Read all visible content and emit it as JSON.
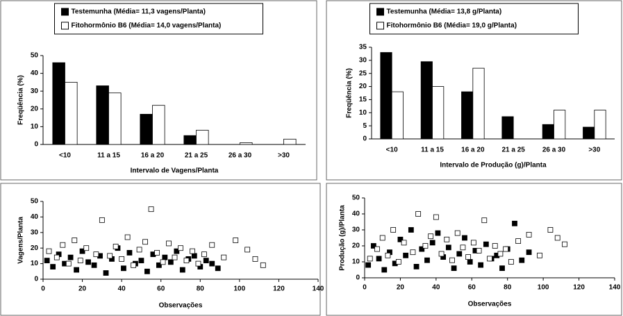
{
  "chart_data": [
    {
      "type": "bar",
      "categories": [
        "<10",
        "11 a 15",
        "16 a 20",
        "21 a 25",
        "26 a 30",
        ">30"
      ],
      "series": [
        {
          "name": "Testemunha (Média= 11,3 vagens/Planta)",
          "color": "#000000",
          "values": [
            46,
            33,
            17,
            5,
            0,
            0
          ]
        },
        {
          "name": "Fitohormônio B6 (Média= 14,0 vagens/Planta)",
          "color": "#ffffff",
          "values": [
            35,
            29,
            22,
            8,
            1,
            3
          ]
        }
      ],
      "x_label": "Intervalo de Vagens/Planta",
      "y_label": "Freqüência (%)",
      "ylim": [
        0,
        50
      ],
      "yticks": [
        0,
        10,
        20,
        30,
        40,
        50
      ]
    },
    {
      "type": "bar",
      "categories": [
        "<10",
        "11 a 15",
        "16 a 20",
        "21 a 25",
        "26 a 30",
        ">30"
      ],
      "series": [
        {
          "name": "Testemunha (Média= 13,8 g/Planta)",
          "color": "#000000",
          "values": [
            33,
            29.5,
            18,
            8.5,
            5.5,
            4.5
          ]
        },
        {
          "name": "Fitohormônio B6 (Média= 19,0 g/Planta)",
          "color": "#ffffff",
          "values": [
            18,
            20,
            27,
            0,
            11,
            11
          ]
        }
      ],
      "x_label": "Intervalo de Produção (g)/Planta",
      "y_label": "Freqüência (%)",
      "ylim": [
        0,
        35
      ],
      "yticks": [
        0,
        5,
        10,
        15,
        20,
        25,
        30,
        35
      ]
    },
    {
      "type": "scatter",
      "series": [
        {
          "color": "#000000",
          "x": [
            2,
            5,
            8,
            11,
            14,
            17,
            20,
            23,
            26,
            29,
            32,
            35,
            38,
            41,
            44,
            47,
            50,
            53,
            56,
            59,
            62,
            65,
            68,
            71,
            74,
            77,
            80,
            83,
            86,
            89
          ],
          "values": [
            12,
            8,
            16,
            10,
            14,
            6,
            18,
            11,
            9,
            15,
            4,
            13,
            20,
            7,
            17,
            10,
            12,
            5,
            16,
            9,
            14,
            11,
            18,
            6,
            13,
            15,
            8,
            12,
            10,
            7
          ]
        },
        {
          "color": "#ffffff",
          "x": [
            3,
            7,
            10,
            13,
            16,
            19,
            22,
            27,
            30,
            34,
            37,
            40,
            43,
            46,
            49,
            52,
            55,
            58,
            61,
            64,
            67,
            70,
            73,
            76,
            79,
            82,
            86,
            92,
            98,
            104,
            108,
            112
          ],
          "values": [
            18,
            14,
            22,
            10,
            25,
            12,
            20,
            16,
            38,
            15,
            21,
            13,
            27,
            9,
            19,
            24,
            45,
            17,
            11,
            23,
            14,
            20,
            12,
            18,
            10,
            16,
            22,
            14,
            25,
            19,
            13,
            9
          ]
        }
      ],
      "x_label": "Observações",
      "y_label": "Vagens/Planta",
      "xlim": [
        0,
        140
      ],
      "xticks": [
        0,
        20,
        40,
        60,
        80,
        100,
        120,
        140
      ],
      "ylim": [
        0,
        50
      ],
      "yticks": [
        0,
        10,
        20,
        30,
        40,
        50
      ]
    },
    {
      "type": "scatter",
      "series": [
        {
          "color": "#000000",
          "x": [
            2,
            5,
            8,
            11,
            14,
            17,
            20,
            23,
            26,
            29,
            32,
            35,
            38,
            41,
            44,
            47,
            50,
            53,
            56,
            59,
            62,
            65,
            68,
            71,
            74,
            77,
            80,
            84,
            88,
            92
          ],
          "values": [
            8,
            20,
            12,
            5,
            16,
            9,
            24,
            14,
            30,
            7,
            18,
            11,
            22,
            28,
            13,
            19,
            6,
            15,
            25,
            10,
            17,
            8,
            21,
            12,
            14,
            6,
            18,
            34,
            11,
            16
          ]
        },
        {
          "color": "#ffffff",
          "x": [
            3,
            7,
            10,
            13,
            16,
            19,
            22,
            27,
            30,
            34,
            37,
            40,
            43,
            46,
            49,
            52,
            55,
            58,
            61,
            64,
            67,
            70,
            73,
            76,
            79,
            82,
            86,
            92,
            98,
            104,
            108,
            112
          ],
          "values": [
            12,
            18,
            25,
            14,
            30,
            10,
            22,
            16,
            40,
            20,
            26,
            38,
            15,
            24,
            11,
            28,
            19,
            13,
            22,
            17,
            36,
            12,
            20,
            15,
            18,
            10,
            23,
            27,
            14,
            30,
            25,
            21
          ]
        }
      ],
      "x_label": "Observações",
      "y_label": "Produção (g)/Planta",
      "xlim": [
        0,
        140
      ],
      "xticks": [
        0,
        20,
        40,
        60,
        80,
        100,
        120,
        140
      ],
      "ylim": [
        0,
        50
      ],
      "yticks": [
        0,
        10,
        20,
        30,
        40,
        50
      ]
    }
  ]
}
